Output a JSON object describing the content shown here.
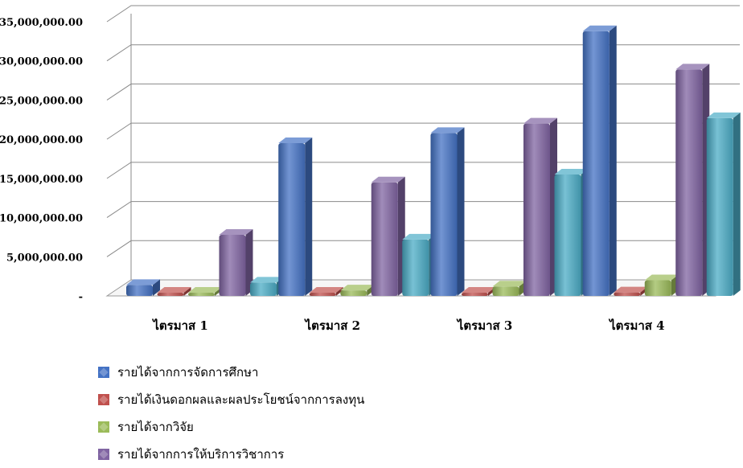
{
  "chart_data": {
    "type": "bar",
    "categories": [
      "ไตรมาส 1",
      "ไตรมาส 2",
      "ไตรมาส 3",
      "ไตรมาส 4"
    ],
    "series": [
      {
        "name": "รายได้จากการจัดการศึกษา",
        "color": "#4472C4",
        "values": [
          1400000,
          19500000,
          20800000,
          33800000
        ]
      },
      {
        "name": "รายได้เงินดอกผลและผลประโยชน์จากการลงทุน",
        "color": "#C0504D",
        "values": [
          150000,
          250000,
          300000,
          450000
        ]
      },
      {
        "name": "รายได้จากวิจัย",
        "color": "#9BBB59",
        "values": [
          200000,
          700000,
          1200000,
          2000000
        ]
      },
      {
        "name": "รายได้จากการให้บริการวิชาการ",
        "color": "#8064A2",
        "values": [
          7800000,
          14500000,
          22000000,
          28900000
        ]
      },
      {
        "name": "",
        "color": "#4BACC6",
        "values": [
          1700000,
          7200000,
          15500000,
          22700000
        ]
      }
    ],
    "y_ticks": [
      "-",
      "5,000,000.00",
      "10,000,000.00",
      "15,000,000.00",
      "20,000,000.00",
      "25,000,000.00",
      "30,000,000.00",
      "35,000,000.00"
    ],
    "ylim": [
      0,
      35000000
    ],
    "grid": true,
    "legend_position": "bottom-left"
  }
}
